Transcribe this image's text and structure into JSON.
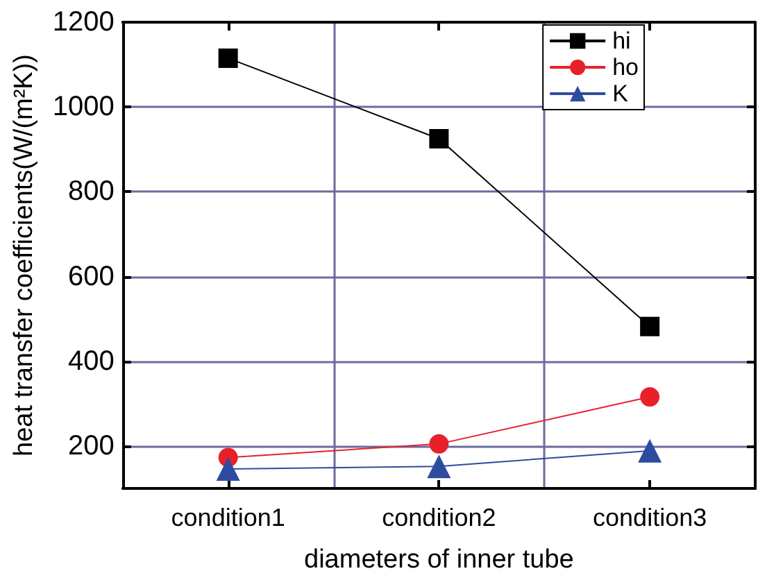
{
  "chart_data": {
    "type": "line",
    "xlabel": "diameters of inner tube",
    "ylabel": "heat transfer coefficients(W/(m²K))",
    "categories": [
      "condition1",
      "condition2",
      "condition3"
    ],
    "series": [
      {
        "name": "hi",
        "color": "#000000",
        "marker": "square",
        "values": [
          1115,
          925,
          482
        ]
      },
      {
        "name": "ho",
        "color": "#e8202a",
        "marker": "circle",
        "values": [
          173,
          205,
          316
        ]
      },
      {
        "name": "K",
        "color": "#2e4ba0",
        "marker": "triangle",
        "values": [
          146,
          152,
          189
        ]
      }
    ],
    "ylim": [
      100,
      1200
    ],
    "yticks": [
      200,
      400,
      600,
      800,
      1000,
      1200
    ],
    "grid": true,
    "legend": "top right"
  }
}
